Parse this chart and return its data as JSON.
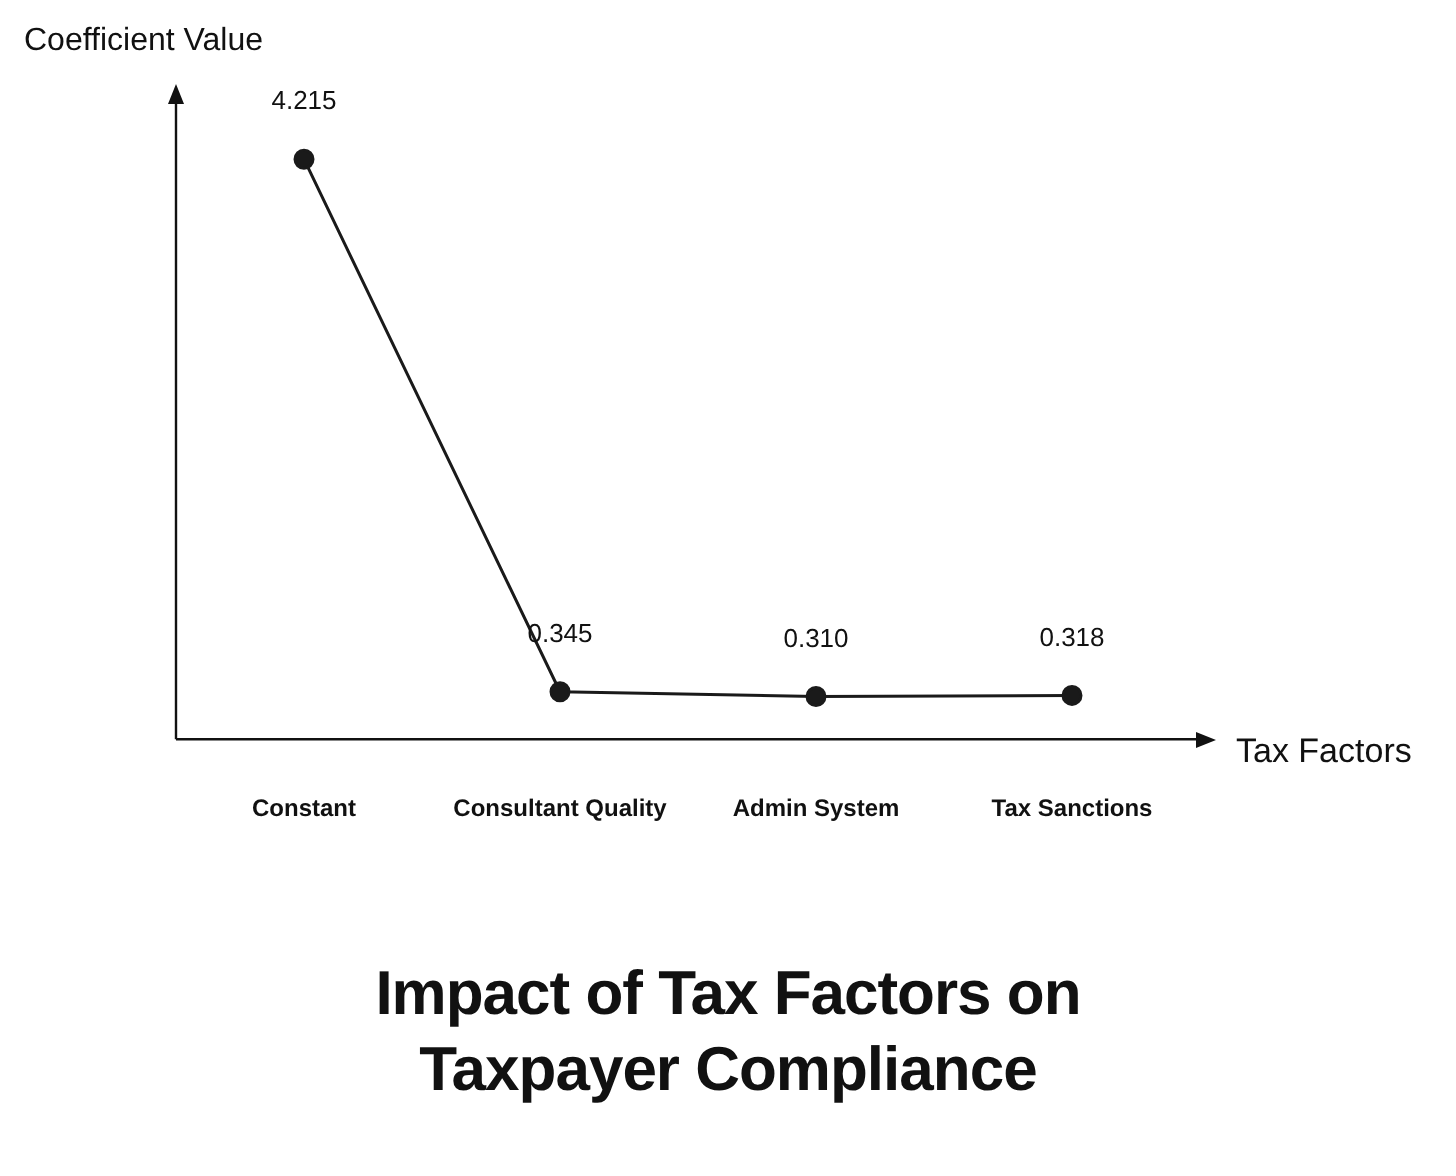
{
  "chart_data": {
    "type": "line",
    "title": "Impact of Tax Factors on Taxpayer Compliance",
    "xlabel": "Tax Factors",
    "ylabel": "Coefficient Value",
    "categories": [
      "Constant",
      "Consultant Quality",
      "Admin System",
      "Tax Sanctions"
    ],
    "series": [
      {
        "color": "#1a1a1a",
        "values": [
          4.215,
          0.345,
          0.31,
          0.318
        ],
        "value_labels": [
          "4.215",
          "0.345",
          "0.310",
          "0.318"
        ]
      }
    ],
    "tick_labels": "x",
    "marker": "circle",
    "line_style": "solid"
  }
}
